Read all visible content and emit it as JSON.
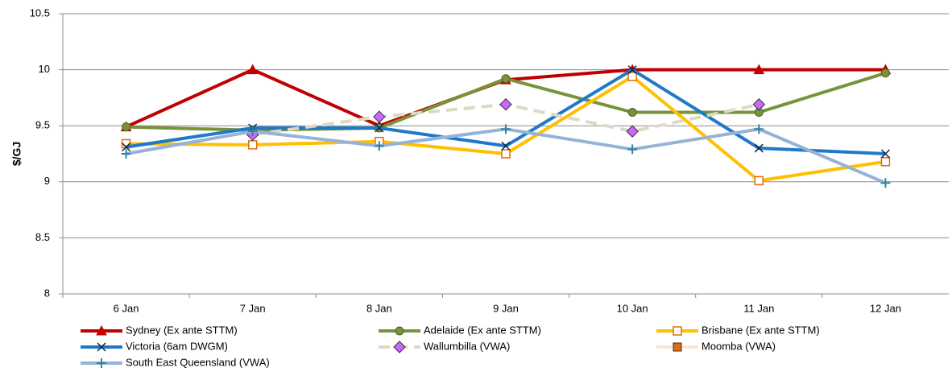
{
  "chart_data": {
    "type": "line",
    "y_label": "$/GJ",
    "categories": [
      "6 Jan",
      "7 Jan",
      "8 Jan",
      "9 Jan",
      "10 Jan",
      "11 Jan",
      "12 Jan"
    ],
    "ylim": [
      8,
      10.5
    ],
    "yticks": [
      8,
      8.5,
      9,
      9.5,
      10,
      10.5
    ],
    "grid": true,
    "series": [
      {
        "name": "Sydney (Ex ante STTM)",
        "color": "#c00000",
        "marker": "triangle",
        "marker_color": "#c00000",
        "dash": false,
        "values": [
          9.49,
          10.0,
          9.5,
          9.91,
          10.0,
          10.0,
          10.0
        ]
      },
      {
        "name": "Adelaide (Ex ante STTM)",
        "color": "#77933c",
        "marker": "circle",
        "marker_color": "#77933c",
        "dash": false,
        "values": [
          9.49,
          9.46,
          9.48,
          9.92,
          9.62,
          9.62,
          9.97
        ]
      },
      {
        "name": "Brisbane (Ex ante STTM)",
        "color": "#ffc000",
        "marker": "open-square",
        "marker_color": "#e36c09",
        "dash": false,
        "values": [
          9.34,
          9.33,
          9.36,
          9.25,
          9.94,
          9.01,
          9.18
        ]
      },
      {
        "name": "Victoria (6am DWGM)",
        "color": "#1f78c8",
        "marker": "x",
        "marker_color": "#10253f",
        "dash": false,
        "values": [
          9.31,
          9.48,
          9.48,
          9.32,
          10.0,
          9.3,
          9.25
        ]
      },
      {
        "name": "Wallumbilla (VWA)",
        "color": "#ddd9c3",
        "marker": "diamond",
        "marker_color": "#cc66ff",
        "dash": true,
        "values": [
          null,
          9.42,
          9.58,
          9.69,
          9.45,
          9.69,
          null
        ]
      },
      {
        "name": "Moomba (VWA)",
        "color": "#fbe5d6",
        "marker": "square",
        "marker_color": "#e36c09",
        "dash": false,
        "values": [
          null,
          null,
          null,
          null,
          null,
          null,
          null
        ]
      },
      {
        "name": "South East Queensland (VWA)",
        "color": "#95b3d7",
        "marker": "plus",
        "marker_color": "#31859c",
        "dash": false,
        "values": [
          9.25,
          9.45,
          9.32,
          9.47,
          9.29,
          9.47,
          8.99
        ]
      }
    ]
  }
}
